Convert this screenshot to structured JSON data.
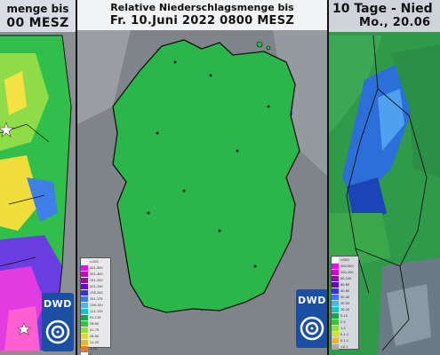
{
  "panels": [
    {
      "title_line1": "menge bis",
      "title_line2": "00 MESZ",
      "brand": "DWD"
    },
    {
      "title_line1": "Relative Niederschlagsmenge bis",
      "title_line2": "Fr. 10.Juni 2022 0800 MESZ",
      "brand": "DWD",
      "legend": [
        ">100",
        "401-500",
        "301-400",
        "251-300",
        "201-250",
        "176-200",
        "151-175",
        "126-150",
        "111-125",
        "91-110",
        "76-90",
        "51-75",
        "26-50",
        "11-25",
        "1-10",
        "0",
        "kein Wert"
      ]
    },
    {
      "title_line1": "10 Tage - Nied",
      "title_line2": "Mo., 20.06",
      "legend": [
        ">500",
        "200-500",
        "100-200",
        "80-100",
        "60-80",
        "40-60",
        "30-40",
        "20-30",
        "10-20",
        "5-10",
        "2-5",
        "1-2",
        "0.1-1",
        "0.1-1",
        "<0.1"
      ]
    }
  ],
  "colors": {
    "rain_green": "#22b14c",
    "rain_light": "#9be35a",
    "rain_yellow": "#f5e142",
    "rain_blue": "#3a3ae0",
    "rain_magenta": "#e040e0",
    "brand_blue": "#1a4fa3"
  },
  "icons": [
    "star-marker-icon",
    "dwd-swirl-logo-icon"
  ]
}
